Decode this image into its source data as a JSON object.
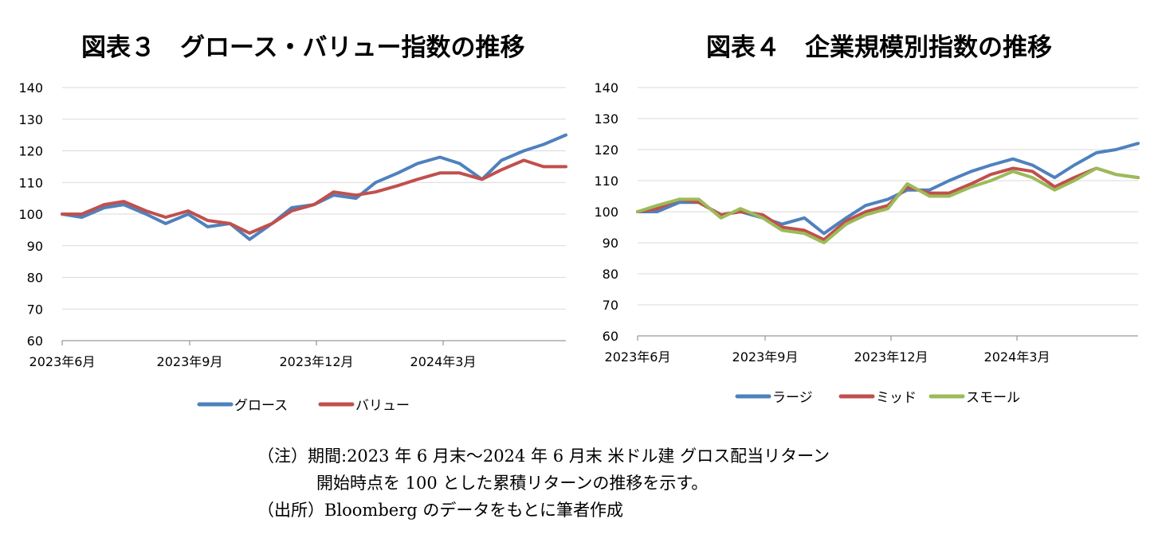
{
  "chart_data": [
    {
      "type": "line",
      "title": "図表３　グロース・バリュー指数の推移",
      "ylim": [
        60,
        140
      ],
      "yticks": [
        60,
        70,
        80,
        90,
        100,
        110,
        120,
        130,
        140
      ],
      "x_tick_labels": [
        "2023年6月",
        "2023年9月",
        "2023年12月",
        "2024年3月"
      ],
      "grid": "horizontal",
      "legend": "bottom",
      "series": [
        {
          "name": "グロース",
          "color": "#4f81bd",
          "points": [
            [
              "2023-06",
              100
            ],
            [
              "2023-06-15",
              99
            ],
            [
              "2023-07",
              102
            ],
            [
              "2023-07-15",
              103
            ],
            [
              "2023-08",
              100
            ],
            [
              "2023-08-15",
              97
            ],
            [
              "2023-09",
              100
            ],
            [
              "2023-09-15",
              96
            ],
            [
              "2023-10",
              97
            ],
            [
              "2023-10-15",
              92
            ],
            [
              "2023-11",
              97
            ],
            [
              "2023-11-15",
              102
            ],
            [
              "2023-12",
              103
            ],
            [
              "2023-12-15",
              106
            ],
            [
              "2024-01",
              105
            ],
            [
              "2024-01-15",
              110
            ],
            [
              "2024-02",
              113
            ],
            [
              "2024-02-15",
              116
            ],
            [
              "2024-03",
              118
            ],
            [
              "2024-03-15",
              116
            ],
            [
              "2024-04",
              111
            ],
            [
              "2024-04-15",
              117
            ],
            [
              "2024-05",
              120
            ],
            [
              "2024-05-15",
              122
            ],
            [
              "2024-06",
              125
            ]
          ]
        },
        {
          "name": "バリュー",
          "color": "#c0504d",
          "points": [
            [
              "2023-06",
              100
            ],
            [
              "2023-06-15",
              100
            ],
            [
              "2023-07",
              103
            ],
            [
              "2023-07-15",
              104
            ],
            [
              "2023-08",
              101
            ],
            [
              "2023-08-15",
              99
            ],
            [
              "2023-09",
              101
            ],
            [
              "2023-09-15",
              98
            ],
            [
              "2023-10",
              97
            ],
            [
              "2023-10-15",
              94
            ],
            [
              "2023-11",
              97
            ],
            [
              "2023-11-15",
              101
            ],
            [
              "2023-12",
              103
            ],
            [
              "2023-12-15",
              107
            ],
            [
              "2024-01",
              106
            ],
            [
              "2024-01-15",
              107
            ],
            [
              "2024-02",
              109
            ],
            [
              "2024-02-15",
              111
            ],
            [
              "2024-03",
              113
            ],
            [
              "2024-03-15",
              113
            ],
            [
              "2024-04",
              111
            ],
            [
              "2024-04-15",
              114
            ],
            [
              "2024-05",
              117
            ],
            [
              "2024-05-15",
              115
            ],
            [
              "2024-06",
              115
            ]
          ]
        }
      ]
    },
    {
      "type": "line",
      "title": "図表４　企業規模別指数の推移",
      "ylim": [
        60,
        140
      ],
      "yticks": [
        60,
        70,
        80,
        90,
        100,
        110,
        120,
        130,
        140
      ],
      "x_tick_labels": [
        "2023年6月",
        "2023年9月",
        "2023年12月",
        "2024年3月"
      ],
      "grid": "horizontal",
      "legend": "bottom",
      "series": [
        {
          "name": "ラージ",
          "color": "#4f81bd",
          "points": [
            [
              "2023-06",
              100
            ],
            [
              "2023-06-15",
              100
            ],
            [
              "2023-07",
              103
            ],
            [
              "2023-07-15",
              103
            ],
            [
              "2023-08",
              99
            ],
            [
              "2023-08-15",
              100
            ],
            [
              "2023-09",
              98
            ],
            [
              "2023-09-15",
              96
            ],
            [
              "2023-10",
              98
            ],
            [
              "2023-10-15",
              93
            ],
            [
              "2023-11",
              98
            ],
            [
              "2023-11-15",
              102
            ],
            [
              "2023-12",
              104
            ],
            [
              "2023-12-15",
              107
            ],
            [
              "2024-01",
              107
            ],
            [
              "2024-01-15",
              110
            ],
            [
              "2024-02",
              113
            ],
            [
              "2024-02-15",
              115
            ],
            [
              "2024-03",
              117
            ],
            [
              "2024-03-15",
              115
            ],
            [
              "2024-04",
              111
            ],
            [
              "2024-04-15",
              115
            ],
            [
              "2024-05",
              119
            ],
            [
              "2024-05-15",
              120
            ],
            [
              "2024-06",
              122
            ]
          ]
        },
        {
          "name": "ミッド",
          "color": "#c0504d",
          "points": [
            [
              "2023-06",
              100
            ],
            [
              "2023-06-15",
              101
            ],
            [
              "2023-07",
              104
            ],
            [
              "2023-07-15",
              103
            ],
            [
              "2023-08",
              99
            ],
            [
              "2023-08-15",
              100
            ],
            [
              "2023-09",
              99
            ],
            [
              "2023-09-15",
              95
            ],
            [
              "2023-10",
              94
            ],
            [
              "2023-10-15",
              91
            ],
            [
              "2023-11",
              97
            ],
            [
              "2023-11-15",
              100
            ],
            [
              "2023-12",
              102
            ],
            [
              "2023-12-15",
              108
            ],
            [
              "2024-01",
              106
            ],
            [
              "2024-01-15",
              106
            ],
            [
              "2024-02",
              109
            ],
            [
              "2024-02-15",
              112
            ],
            [
              "2024-03",
              114
            ],
            [
              "2024-03-15",
              113
            ],
            [
              "2024-04",
              108
            ],
            [
              "2024-04-15",
              111
            ],
            [
              "2024-05",
              114
            ],
            [
              "2024-05-15",
              112
            ],
            [
              "2024-06",
              111
            ]
          ]
        },
        {
          "name": "スモール",
          "color": "#9bbb59",
          "points": [
            [
              "2023-06",
              100
            ],
            [
              "2023-06-15",
              102
            ],
            [
              "2023-07",
              104
            ],
            [
              "2023-07-15",
              104
            ],
            [
              "2023-08",
              98
            ],
            [
              "2023-08-15",
              101
            ],
            [
              "2023-09",
              98
            ],
            [
              "2023-09-15",
              94
            ],
            [
              "2023-10",
              93
            ],
            [
              "2023-10-15",
              90
            ],
            [
              "2023-11",
              96
            ],
            [
              "2023-11-15",
              99
            ],
            [
              "2023-12",
              101
            ],
            [
              "2023-12-15",
              109
            ],
            [
              "2024-01",
              105
            ],
            [
              "2024-01-15",
              105
            ],
            [
              "2024-02",
              108
            ],
            [
              "2024-02-15",
              110
            ],
            [
              "2024-03",
              113
            ],
            [
              "2024-03-15",
              111
            ],
            [
              "2024-04",
              107
            ],
            [
              "2024-04-15",
              110
            ],
            [
              "2024-05",
              114
            ],
            [
              "2024-05-15",
              112
            ],
            [
              "2024-06",
              111
            ]
          ]
        }
      ]
    }
  ],
  "notes": {
    "line1": "（注）期間:2023 年 6 月末～2024 年 6 月末 米ドル建 グロス配当リターン",
    "line2": "開始時点を 100 とした累積リターンの推移を示す。",
    "line3": "（出所）Bloomberg のデータをもとに筆者作成"
  }
}
